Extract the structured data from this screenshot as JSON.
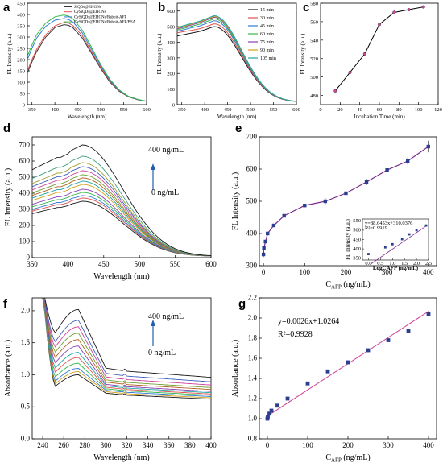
{
  "chart_data": [
    {
      "panel": "a",
      "type": "line",
      "xlabel": "Wavelength (nm)",
      "ylabel": "FL Intensity (a.u.)",
      "xlim": [
        340,
        600
      ],
      "ylim": [
        0,
        450
      ],
      "xticks": [
        350,
        400,
        450,
        500,
        550,
        600
      ],
      "yticks": [
        0,
        50,
        100,
        150,
        200,
        250,
        300,
        350,
        400,
        450
      ],
      "legend_position": "top",
      "series": [
        {
          "name": "SiQDs@EHGNs",
          "color": "#333333",
          "x": [
            340,
            350,
            360,
            380,
            400,
            420,
            430,
            440,
            460,
            480,
            500,
            520,
            540,
            560,
            580,
            600
          ],
          "y": [
            140,
            190,
            235,
            300,
            342,
            355,
            352,
            340,
            295,
            228,
            160,
            100,
            60,
            35,
            22,
            15
          ]
        },
        {
          "name": "CySiQDs@EHGNs",
          "color": "#e0524f",
          "x": [
            340,
            350,
            360,
            380,
            400,
            420,
            430,
            440,
            460,
            480,
            500,
            520,
            540,
            560,
            580,
            600
          ],
          "y": [
            150,
            200,
            245,
            310,
            350,
            365,
            362,
            350,
            305,
            235,
            165,
            104,
            62,
            36,
            23,
            15
          ]
        },
        {
          "name": "CySiQDs@EHGNs/Rabbit-AFP",
          "color": "#2f7bd8",
          "x": [
            340,
            350,
            360,
            380,
            400,
            420,
            430,
            440,
            460,
            480,
            500,
            520,
            540,
            560,
            580,
            600
          ],
          "y": [
            200,
            250,
            295,
            348,
            375,
            382,
            378,
            366,
            318,
            245,
            172,
            108,
            64,
            37,
            23,
            15
          ]
        },
        {
          "name": "CySiQDs@EHGNs/Rabbit-AFP/BSA",
          "color": "#34b84a",
          "x": [
            340,
            350,
            360,
            380,
            400,
            420,
            430,
            440,
            460,
            480,
            500,
            520,
            540,
            560,
            580,
            600
          ],
          "y": [
            215,
            265,
            310,
            362,
            390,
            398,
            393,
            380,
            330,
            254,
            178,
            112,
            66,
            38,
            24,
            15
          ]
        }
      ]
    },
    {
      "panel": "b",
      "type": "line",
      "xlabel": "Wavelength (nm)",
      "ylabel": "FL Intensity (a.u.)",
      "xlim": [
        340,
        600
      ],
      "ylim": [
        0,
        650
      ],
      "xticks": [
        350,
        400,
        450,
        500,
        550,
        600
      ],
      "yticks": [
        0,
        100,
        200,
        300,
        400,
        500,
        600
      ],
      "legend_position": "right",
      "series": [
        {
          "name": "15 min",
          "color": "#1a1a1a",
          "peak": 500,
          "x0": 440
        },
        {
          "name": "30 min",
          "color": "#e0524f",
          "peak": 518,
          "x0": 460
        },
        {
          "name": "45 min",
          "color": "#2f7bd8",
          "peak": 538,
          "x0": 470
        },
        {
          "name": "60 min",
          "color": "#34b84a",
          "peak": 550,
          "x0": 478
        },
        {
          "name": "75 min",
          "color": "#8a3fb5",
          "peak": 560,
          "x0": 485
        },
        {
          "name": "90 min",
          "color": "#d4a017",
          "peak": 565,
          "x0": 490
        },
        {
          "name": "105 min",
          "color": "#1aa5a5",
          "peak": 570,
          "x0": 495
        }
      ]
    },
    {
      "panel": "c",
      "type": "line",
      "xlabel": "Incubation Time (min)",
      "ylabel": "FL Intensity (a.u.)",
      "xlim": [
        0,
        120
      ],
      "ylim": [
        470,
        580
      ],
      "xticks": [
        0,
        20,
        40,
        60,
        80,
        100,
        120
      ],
      "yticks": [
        480,
        500,
        520,
        540,
        560,
        580
      ],
      "x": [
        15,
        30,
        45,
        60,
        75,
        90,
        105
      ],
      "y": [
        485,
        505,
        525,
        557,
        570,
        573,
        576
      ],
      "err": [
        2,
        1.5,
        2,
        1.5,
        2,
        1,
        1
      ]
    },
    {
      "panel": "d",
      "type": "line",
      "xlabel": "Wavelength (nm)",
      "ylabel": "FL Intensity (a.u.)",
      "xlim": [
        350,
        600
      ],
      "ylim": [
        0,
        750
      ],
      "xticks": [
        350,
        400,
        450,
        500,
        550,
        600
      ],
      "yticks": [
        0,
        100,
        200,
        300,
        400,
        500,
        600,
        700
      ],
      "annotation_top": "400 ng/mL",
      "annotation_bottom": "0 ng/mL",
      "peaks": [
        350,
        370,
        385,
        405,
        425,
        455,
        475,
        495,
        515,
        540,
        565,
        590,
        630,
        700
      ],
      "colors": [
        "#1a1a1a",
        "#e0524f",
        "#2f7bd8",
        "#34b84a",
        "#8a3fb5",
        "#d4a017",
        "#1aa5a5",
        "#b06020",
        "#70a030",
        "#d040a0",
        "#4060c0",
        "#a0a030",
        "#40a080",
        "#1a1a1a"
      ]
    },
    {
      "panel": "e",
      "type": "line",
      "xlabel": "C",
      "xlabel_sub": "AFP",
      "xlabel_unit": " (ng/mL)",
      "ylabel": "FL Intensity (a.u.)",
      "xlim": [
        -10,
        420
      ],
      "ylim": [
        300,
        700
      ],
      "xticks": [
        0,
        100,
        200,
        300,
        400
      ],
      "yticks": [
        300,
        400,
        500,
        600,
        700
      ],
      "x": [
        0,
        1,
        5,
        10,
        25,
        50,
        100,
        150,
        200,
        250,
        300,
        350,
        400
      ],
      "y": [
        335,
        355,
        375,
        400,
        425,
        455,
        487,
        500,
        525,
        560,
        597,
        625,
        670
      ],
      "err": [
        8,
        5,
        5,
        6,
        5,
        5,
        5,
        10,
        5,
        10,
        8,
        12,
        18
      ],
      "inset": {
        "xlabel": "LogCAFP (ng/mL)",
        "ylabel": "FL Intensity (a.u.)",
        "xlim": [
          -0.25,
          2.5
        ],
        "ylim": [
          340,
          560
        ],
        "xticks": [
          0.0,
          0.5,
          1.0,
          1.5,
          2.0,
          2.5
        ],
        "xtick_labels": [
          "0.0",
          "0.5",
          "1.0",
          "1.5",
          "2.0",
          "2.5"
        ],
        "yticks": [
          350,
          400,
          450,
          500,
          550
        ],
        "equation": "y=88.6453x+310.0376",
        "r2": "R²=0.9919",
        "x": [
          0,
          0.7,
          1.0,
          1.4,
          1.7,
          2.0,
          2.4
        ],
        "y": [
          372,
          408,
          425,
          452,
          478,
          500,
          525
        ]
      }
    },
    {
      "panel": "f",
      "type": "line",
      "xlabel": "Wavelength (nm)",
      "ylabel": "Absorbance (a.u.)",
      "xlim": [
        230,
        400
      ],
      "ylim": [
        0,
        2.2
      ],
      "xticks": [
        240,
        260,
        280,
        300,
        320,
        340,
        360,
        380,
        400
      ],
      "yticks": [
        0.0,
        0.5,
        1.0,
        1.5,
        2.0
      ],
      "ytick_labels": [
        "0.0",
        "0.5",
        "1.0",
        "1.5",
        "2.0"
      ],
      "annotation_top": "400 ng/mL",
      "annotation_bottom": "0 ng/mL",
      "peaks": [
        1.0,
        1.05,
        1.1,
        1.18,
        1.27,
        1.35,
        1.45,
        1.55,
        1.65,
        1.75,
        1.85,
        2.02
      ],
      "tails": [
        0.62,
        0.64,
        0.66,
        0.68,
        0.7,
        0.72,
        0.74,
        0.77,
        0.8,
        0.84,
        0.89,
        0.96
      ],
      "colors": [
        "#1a1a1a",
        "#d4a017",
        "#2f7bd8",
        "#34b84a",
        "#e0524f",
        "#1aa5a5",
        "#8a3fb5",
        "#b06020",
        "#70a030",
        "#d040a0",
        "#4060c0",
        "#1a1a1a"
      ]
    },
    {
      "panel": "g",
      "type": "scatter",
      "xlabel": "C",
      "xlabel_sub": "AFP",
      "xlabel_unit": " (ng/mL)",
      "ylabel": "Absorbance (a.u.)",
      "xlim": [
        -20,
        420
      ],
      "ylim": [
        0.8,
        2.2
      ],
      "xticks": [
        0,
        100,
        200,
        300,
        400
      ],
      "yticks": [
        0.8,
        1.0,
        1.2,
        1.4,
        1.6,
        1.8,
        2.0,
        2.2
      ],
      "ytick_labels": [
        "0.8",
        "1.0",
        "1.2",
        "1.4",
        "1.6",
        "1.8",
        "2.0",
        "2.2"
      ],
      "equation": "y=0.0026x+1.0264",
      "r2": "R²=0.9928",
      "fit": {
        "slope": 0.0026,
        "intercept": 1.0264
      },
      "x": [
        0,
        1,
        5,
        10,
        25,
        50,
        100,
        150,
        200,
        250,
        300,
        350,
        400
      ],
      "y": [
        1.0,
        1.02,
        1.05,
        1.08,
        1.13,
        1.2,
        1.35,
        1.47,
        1.56,
        1.68,
        1.78,
        1.87,
        2.04
      ]
    }
  ]
}
